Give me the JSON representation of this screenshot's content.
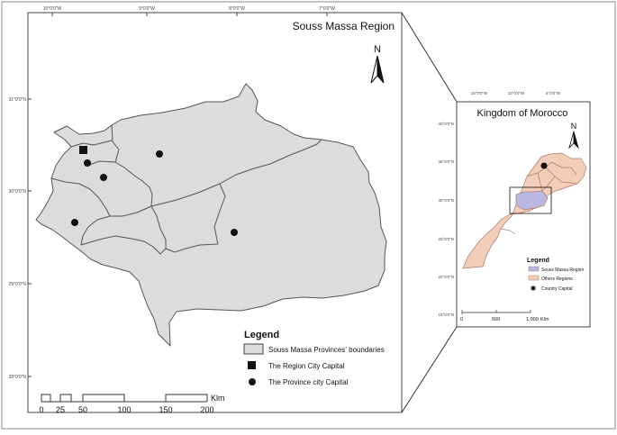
{
  "main_map": {
    "title": "Souss Massa Region",
    "north_label": "N",
    "top_ticks": [
      "10°0'0\"W",
      "9°0'0\"W",
      "8°0'0\"W",
      "7°0'0\"W"
    ],
    "left_ticks": [
      "31°0'0\"N",
      "30°0'0\"N",
      "29°0'0\"N",
      "28°0'0\"N"
    ],
    "legend": {
      "title": "Legend",
      "items": [
        {
          "symbol": "polygon",
          "label": "Souss Massa Provinces' boundaries"
        },
        {
          "symbol": "square",
          "label": "The Region City Capital"
        },
        {
          "symbol": "circle",
          "label": "The Province city Capital"
        }
      ]
    },
    "scale": {
      "unit": "Klm",
      "labels": [
        "0",
        "25",
        "50",
        "100",
        "150",
        "200"
      ]
    },
    "colors": {
      "region_fill": "#dcdcdc",
      "outline": "#555555"
    }
  },
  "inset_map": {
    "title": "Kingdom of Morocco",
    "north_label": "N",
    "top_ticks": [
      "15°0'0\"W",
      "10°0'0\"W",
      "5°0'0\"W"
    ],
    "left_ticks": [
      "40°0'0\"N",
      "35°0'0\"N",
      "30°0'0\"N",
      "25°0'0\"N",
      "20°0'0\"N",
      "15°0'0\"N"
    ],
    "legend": {
      "title": "Legend",
      "items": [
        {
          "symbol": "swatch-blue",
          "label": "Souss Massa Region"
        },
        {
          "symbol": "swatch-peach",
          "label": "Others Regions"
        },
        {
          "symbol": "dot",
          "label": "Country Capital"
        }
      ]
    },
    "scale": {
      "labels": [
        "0",
        "500",
        "1,000"
      ],
      "unit": "Klm"
    },
    "colors": {
      "souss_massa": "#b8b8e0",
      "other_regions": "#f2cdb8",
      "outline": "#b07a6a"
    }
  }
}
